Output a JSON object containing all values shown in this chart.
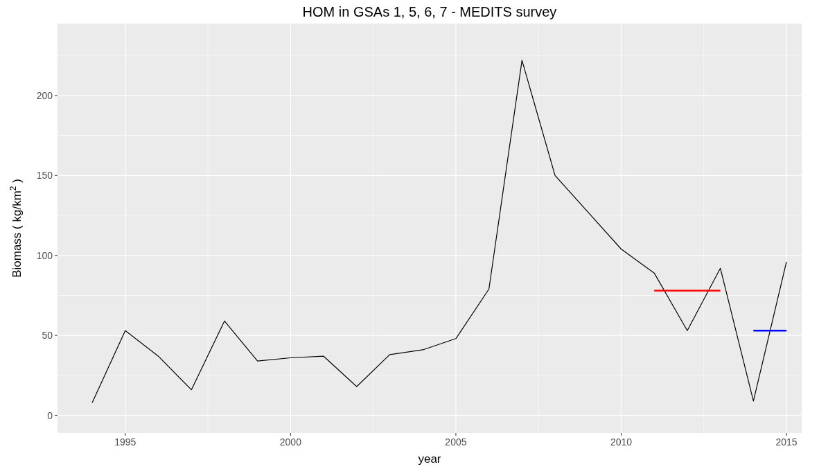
{
  "chart_data": {
    "type": "line",
    "title": "HOM in GSAs 1, 5, 6, 7 - MEDITS survey",
    "xlabel": "year",
    "ylabel": "Biomass ( kg/km$^{2}$ )",
    "x": [
      1994,
      1995,
      1996,
      1997,
      1998,
      1999,
      2000,
      2001,
      2002,
      2003,
      2004,
      2005,
      2006,
      2007,
      2008,
      2009,
      2010,
      2011,
      2012,
      2013,
      2014,
      2015
    ],
    "series": [
      {
        "color": "#000000",
        "values": [
          8,
          53,
          37,
          16,
          59,
          34,
          36,
          37,
          18,
          38,
          41,
          48,
          79,
          222,
          150,
          127,
          104,
          89,
          53,
          92,
          9,
          96
        ]
      },
      {
        "color": "#ff0000",
        "x": [
          2011,
          2013
        ],
        "values": [
          78,
          78
        ]
      },
      {
        "color": "#0000ff",
        "x": [
          2014,
          2015
        ],
        "values": [
          53,
          53
        ]
      }
    ],
    "xlim": [
      1992.95,
      2015.46
    ],
    "ylim": [
      -11,
      245
    ],
    "xticks": [
      1995,
      {
        "value": 1997.5,
        "label": null
      },
      2000,
      {
        "value": 2002.5,
        "label": null
      },
      2005,
      {
        "value": 2007.5,
        "label": null
      },
      2010,
      {
        "value": 2012.5,
        "label": null
      },
      2015
    ],
    "yticks": [
      0,
      {
        "value": 25,
        "label": null
      },
      50,
      {
        "value": 75,
        "label": null
      },
      100,
      {
        "value": 125,
        "label": null
      },
      150,
      {
        "value": 175,
        "label": null
      },
      200,
      {
        "value": 225,
        "label": null
      }
    ],
    "grid": true,
    "line_style": "solid",
    "marker": "none"
  }
}
